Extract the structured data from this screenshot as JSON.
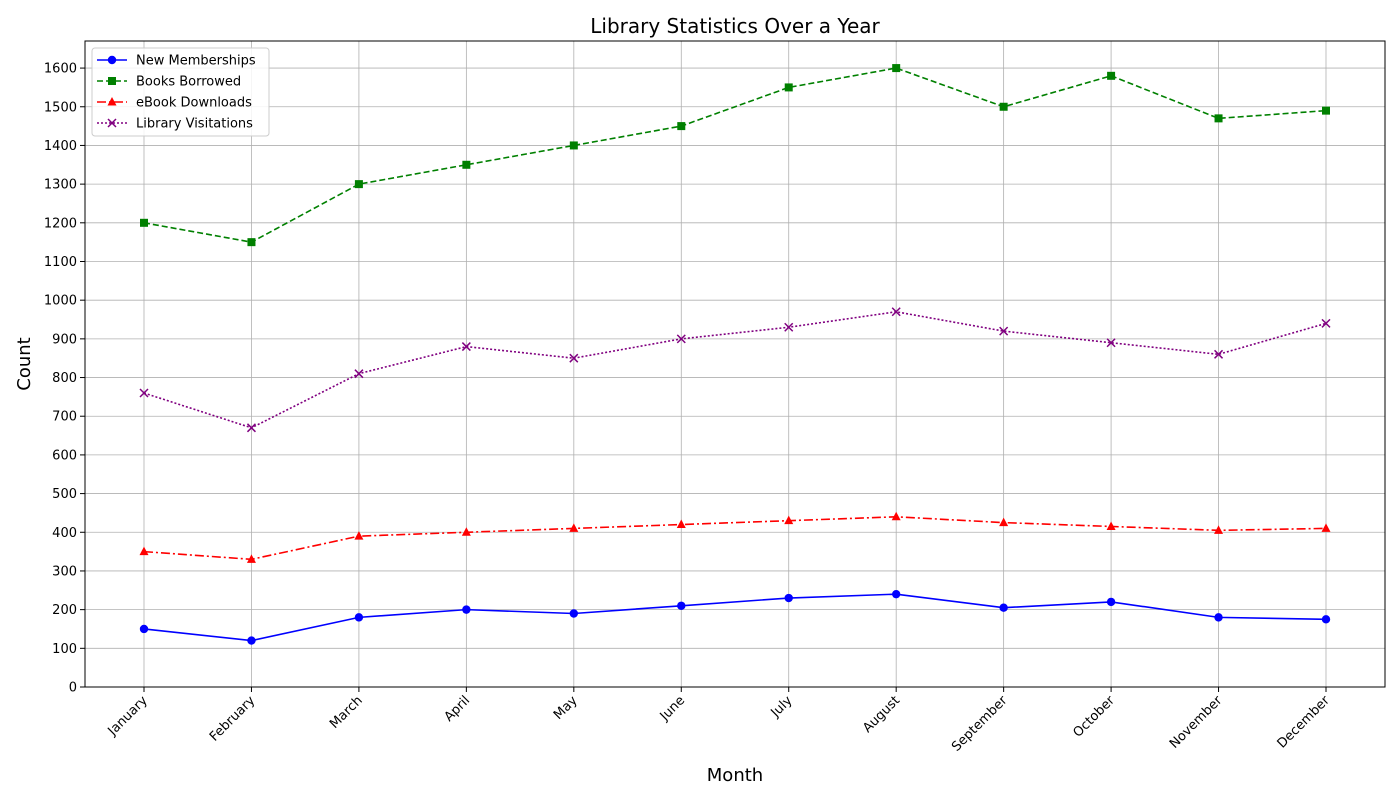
{
  "chart_data": {
    "type": "line",
    "title": "Library Statistics Over a Year",
    "xlabel": "Month",
    "ylabel": "Count",
    "categories": [
      "January",
      "February",
      "March",
      "April",
      "May",
      "June",
      "July",
      "August",
      "September",
      "October",
      "November",
      "December"
    ],
    "ylim": [
      0,
      1670
    ],
    "yticks": [
      0,
      100,
      200,
      300,
      400,
      500,
      600,
      700,
      800,
      900,
      1000,
      1100,
      1200,
      1300,
      1400,
      1500,
      1600
    ],
    "grid": true,
    "legend_position": "top-left",
    "series": [
      {
        "name": "New Memberships",
        "color": "#0000ff",
        "marker": "circle",
        "line_style": "solid",
        "values": [
          150,
          120,
          180,
          200,
          190,
          210,
          230,
          240,
          205,
          220,
          180,
          175
        ]
      },
      {
        "name": "Books Borrowed",
        "color": "#008000",
        "marker": "square",
        "line_style": "dashed",
        "values": [
          1200,
          1150,
          1300,
          1350,
          1400,
          1450,
          1550,
          1600,
          1500,
          1580,
          1470,
          1490
        ]
      },
      {
        "name": "eBook Downloads",
        "color": "#ff0000",
        "marker": "triangle",
        "line_style": "dashdot",
        "values": [
          350,
          330,
          390,
          400,
          410,
          420,
          430,
          440,
          425,
          415,
          405,
          410
        ]
      },
      {
        "name": "Library Visitations",
        "color": "#800080",
        "marker": "x",
        "line_style": "dotted",
        "values": [
          760,
          670,
          810,
          880,
          850,
          900,
          930,
          970,
          920,
          890,
          860,
          940
        ]
      }
    ]
  }
}
